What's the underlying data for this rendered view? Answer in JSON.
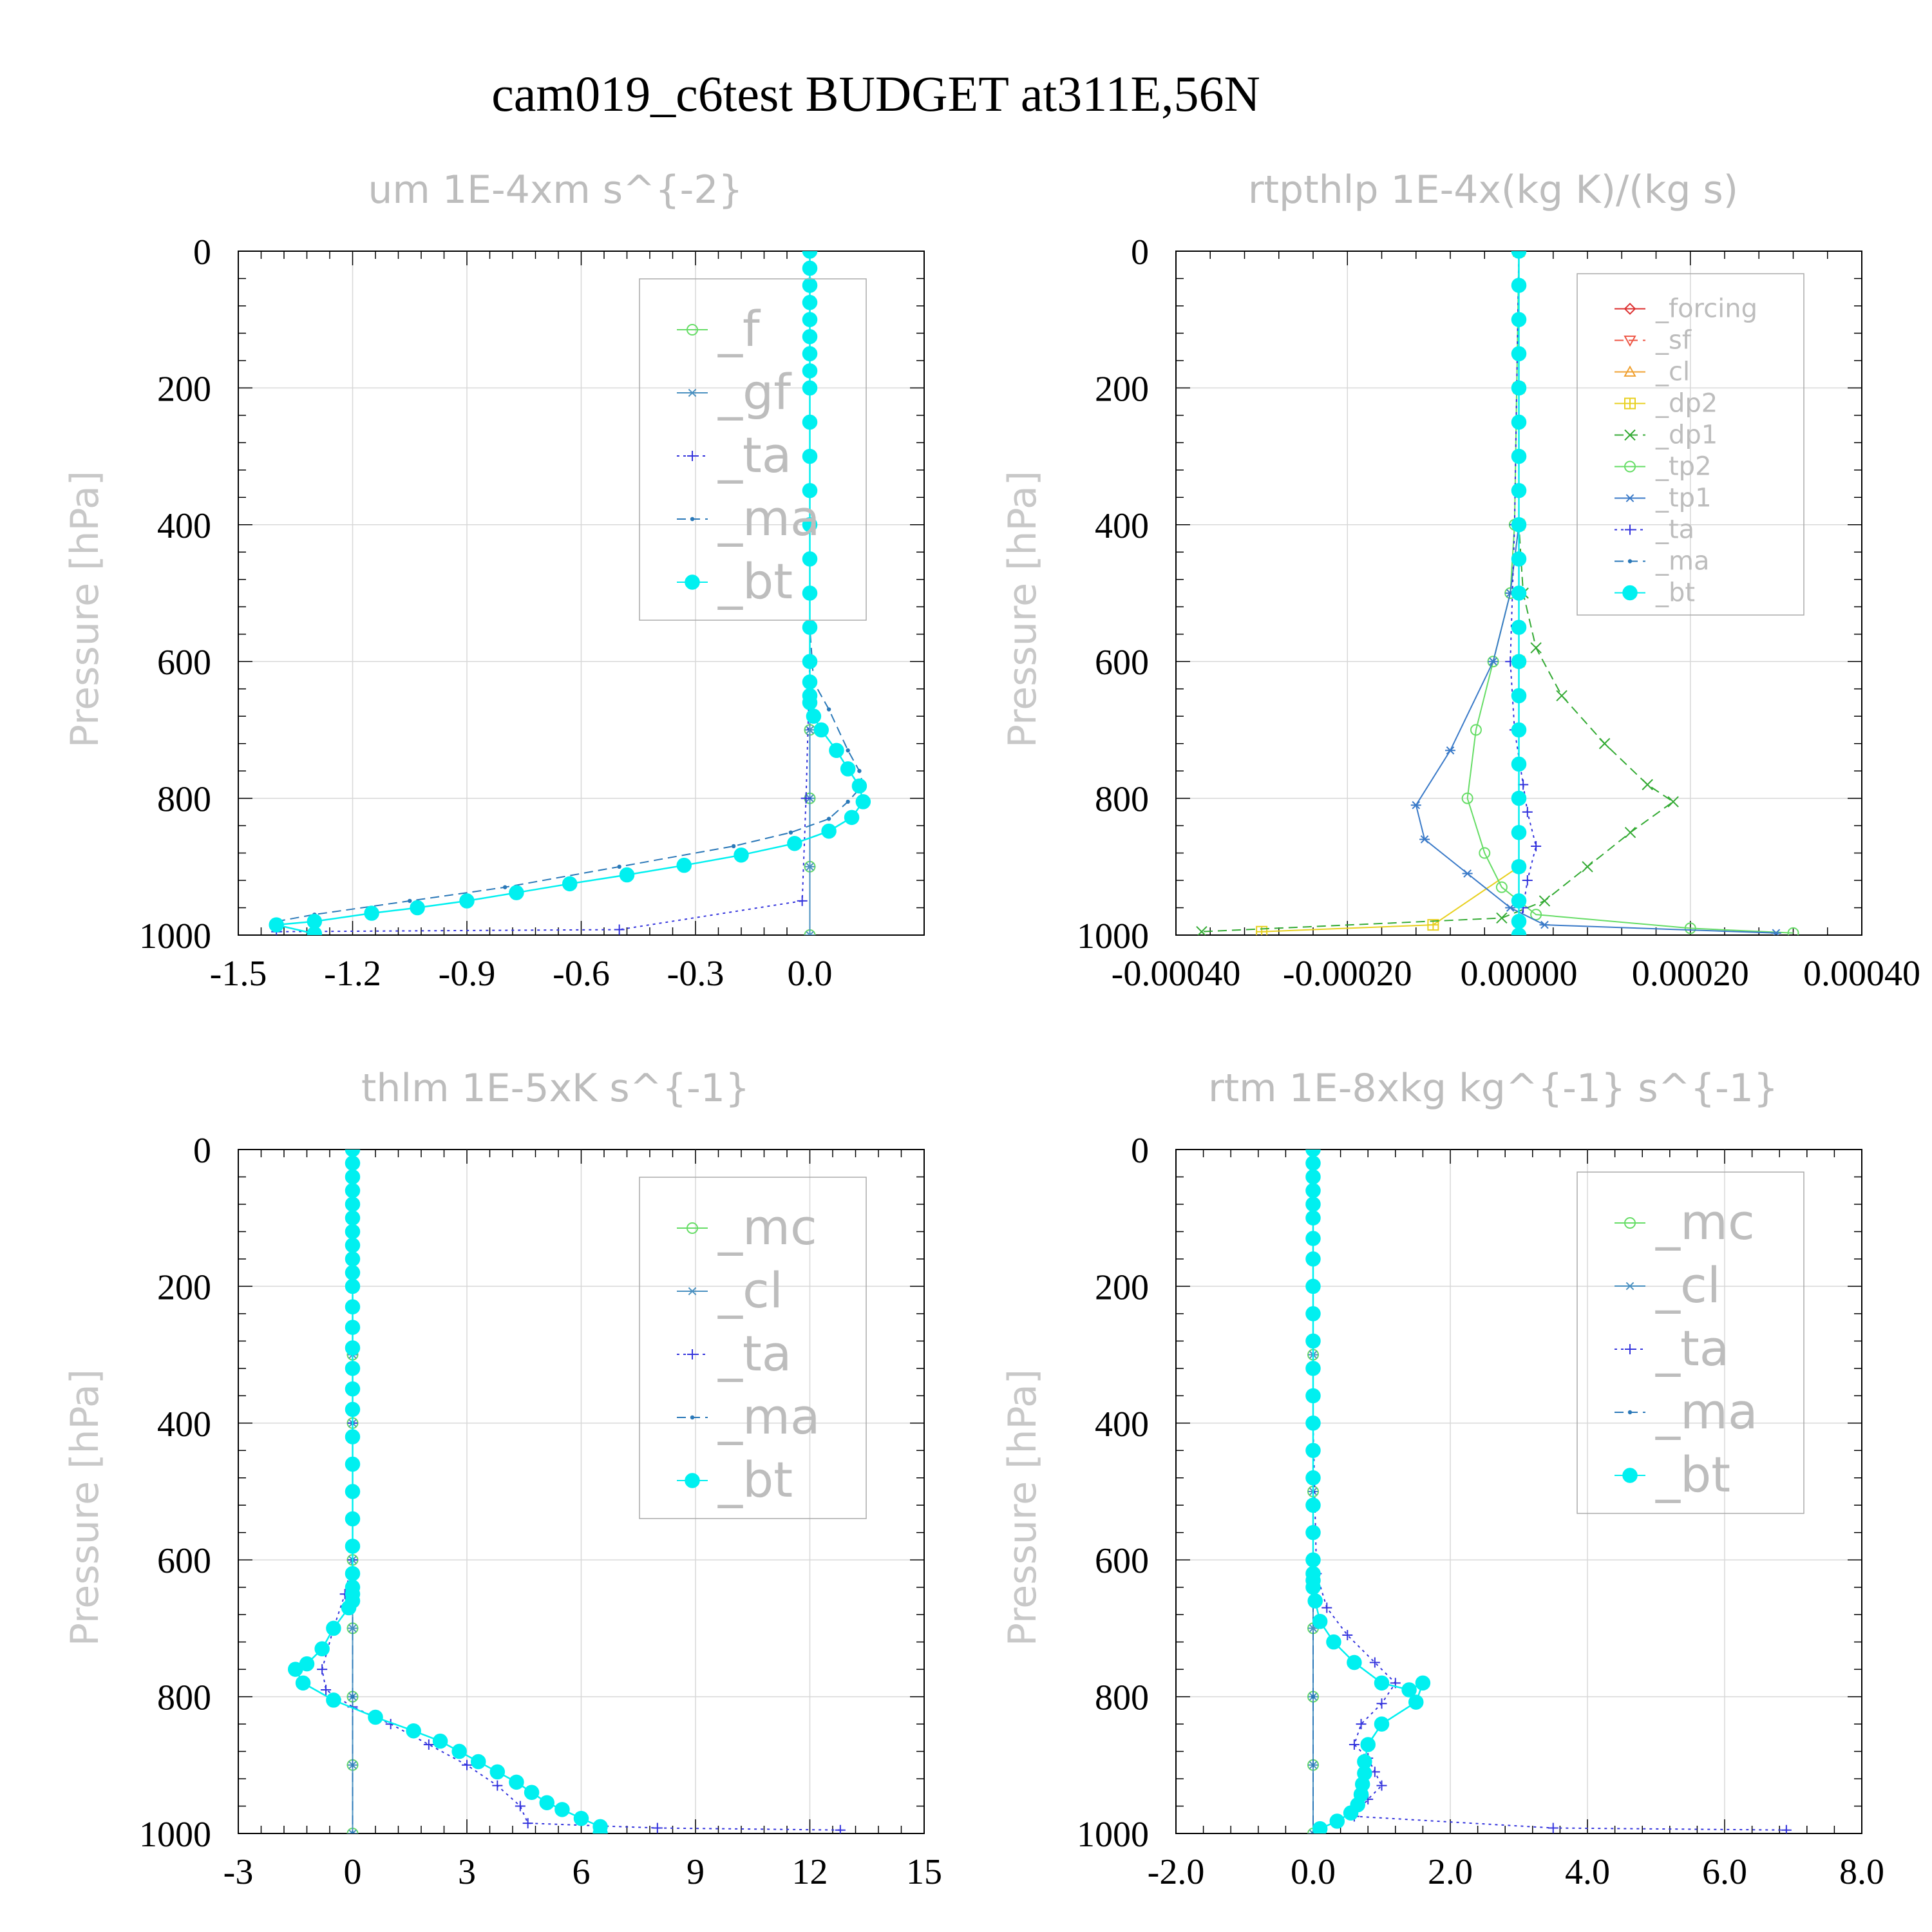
{
  "page": {
    "title": "cam019_c6test  BUDGET at311E,56N"
  },
  "chart_data": [
    {
      "type": "line",
      "title": "um  1E-4xm s^{-2}",
      "ylabel": "Pressure [hPa]",
      "xlabel": "",
      "xlim": [
        -1.5,
        0.3
      ],
      "ylim": [
        1000,
        0
      ],
      "y_inverted": true,
      "xticks": [
        "-1.5",
        "-1.2",
        "-0.9",
        "-0.6",
        "-0.3",
        "0.0"
      ],
      "xtick_values": [
        -1.5,
        -1.2,
        -0.9,
        -0.6,
        -0.3,
        0.0
      ],
      "yticks": [
        "0",
        "200",
        "400",
        "600",
        "800",
        "1000"
      ],
      "ytick_values": [
        0,
        200,
        400,
        600,
        800,
        1000
      ],
      "legend_position": "top-right",
      "series": [
        {
          "name": "_f",
          "color": "#66dd66",
          "marker": "circle",
          "dash": "solid",
          "x": [
            0,
            0,
            0,
            0,
            0,
            0,
            0,
            0,
            0,
            0,
            0
          ],
          "y": [
            0,
            100,
            200,
            300,
            400,
            500,
            600,
            700,
            800,
            900,
            1000
          ]
        },
        {
          "name": "_gf",
          "color": "#4a90c0",
          "marker": "asterisk",
          "dash": "solid",
          "x": [
            0,
            0,
            0,
            0,
            0,
            0,
            0,
            0,
            0,
            0,
            0
          ],
          "y": [
            0,
            100,
            200,
            300,
            400,
            500,
            600,
            700,
            800,
            900,
            1000
          ]
        },
        {
          "name": "_ta",
          "color": "#3333dd",
          "marker": "plus",
          "dash": "dotted",
          "x": [
            0,
            0,
            0,
            0,
            -0.01,
            -0.02,
            -0.5,
            -1.4
          ],
          "y": [
            0,
            200,
            400,
            600,
            800,
            950,
            992,
            995
          ]
        },
        {
          "name": "_ma",
          "color": "#2a78b8",
          "marker": "dot",
          "dash": "dashed",
          "x": [
            0,
            0,
            0,
            0,
            0.01,
            0.05,
            0.1,
            0.13,
            0.14,
            0.1,
            0.05,
            -0.05,
            -0.2,
            -0.5,
            -0.8,
            -1.05,
            -1.3,
            -1.4
          ],
          "y": [
            0,
            200,
            400,
            550,
            630,
            670,
            730,
            760,
            780,
            805,
            830,
            850,
            870,
            900,
            930,
            950,
            970,
            980
          ]
        },
        {
          "name": "_bt",
          "color": "#00f0f0",
          "marker": "filled-circle",
          "dash": "solid",
          "x": [
            0,
            0,
            0,
            0,
            0,
            0,
            0,
            0,
            0,
            0,
            0,
            0,
            0,
            0,
            0,
            0,
            0,
            0,
            0,
            0,
            0.01,
            0.03,
            0.07,
            0.1,
            0.13,
            0.14,
            0.11,
            0.05,
            -0.04,
            -0.18,
            -0.33,
            -0.48,
            -0.63,
            -0.77,
            -0.9,
            -1.03,
            -1.15,
            -1.3,
            -1.4,
            -1.3
          ],
          "y": [
            0,
            25,
            50,
            75,
            100,
            125,
            150,
            175,
            200,
            250,
            300,
            350,
            400,
            450,
            500,
            550,
            600,
            630,
            650,
            660,
            680,
            700,
            730,
            757,
            782,
            805,
            828,
            848,
            866,
            883,
            898,
            912,
            925,
            938,
            950,
            960,
            968,
            980,
            985,
            998
          ]
        }
      ]
    },
    {
      "type": "line",
      "title": "rtpthlp  1E-4x(kg K)/(kg s)",
      "ylabel": "Pressure [hPa]",
      "xlabel": "",
      "xlim": [
        -0.0004,
        0.0004
      ],
      "ylim": [
        1000,
        0
      ],
      "y_inverted": true,
      "xticks": [
        "-0.00040",
        "-0.00020",
        "0.00000",
        "0.00020",
        "0.00040"
      ],
      "xtick_values": [
        -0.0004,
        -0.0002,
        0,
        0.0002,
        0.0004
      ],
      "yticks": [
        "0",
        "200",
        "400",
        "600",
        "800",
        "1000"
      ],
      "ytick_values": [
        0,
        200,
        400,
        600,
        800,
        1000
      ],
      "legend_position": "top-right",
      "series": [
        {
          "name": "_forcing",
          "color": "#dd3333",
          "marker": "diamond",
          "dash": "solid",
          "x": [
            0,
            0,
            0,
            0,
            0,
            0
          ],
          "y": [
            0,
            200,
            400,
            600,
            800,
            1000
          ]
        },
        {
          "name": "_sf",
          "color": "#ee5544",
          "marker": "triangle-down",
          "dash": "dashed",
          "x": [
            0,
            0,
            0,
            0,
            0,
            0
          ],
          "y": [
            0,
            200,
            400,
            600,
            800,
            1000
          ]
        },
        {
          "name": "_cl",
          "color": "#f0a030",
          "marker": "triangle-up",
          "dash": "solid",
          "x": [
            0,
            0,
            0,
            0,
            0,
            0
          ],
          "y": [
            0,
            200,
            400,
            600,
            800,
            1000
          ]
        },
        {
          "name": "_dp2",
          "color": "#e8d020",
          "marker": "square-plus",
          "dash": "solid",
          "x": [
            0,
            0,
            0,
            0,
            0,
            -0.0001,
            -0.0003
          ],
          "y": [
            0,
            200,
            400,
            600,
            900,
            985,
            995
          ]
        },
        {
          "name": "_dp1",
          "color": "#33aa33",
          "marker": "x",
          "dash": "dashed",
          "x": [
            0,
            0,
            5e-06,
            2e-05,
            5e-05,
            0.0001,
            0.00015,
            0.00018,
            0.00013,
            8e-05,
            3e-05,
            -2e-05,
            -0.00037
          ],
          "y": [
            0,
            400,
            500,
            580,
            650,
            720,
            780,
            805,
            850,
            900,
            950,
            975,
            995
          ]
        },
        {
          "name": "_tp2",
          "color": "#66dd66",
          "marker": "circle",
          "dash": "solid",
          "x": [
            0,
            -5e-06,
            -1e-05,
            -3e-05,
            -5e-05,
            -6e-05,
            -4e-05,
            -2e-05,
            2e-05,
            0.0002,
            0.00032
          ],
          "y": [
            0,
            400,
            500,
            600,
            700,
            800,
            880,
            930,
            970,
            990,
            997
          ]
        },
        {
          "name": "_tp1",
          "color": "#3a7ac8",
          "marker": "asterisk",
          "dash": "solid",
          "x": [
            0,
            0,
            -1e-05,
            -3e-05,
            -8e-05,
            -0.00012,
            -0.00011,
            -6e-05,
            -1e-05,
            3e-05,
            0.0003
          ],
          "y": [
            0,
            400,
            500,
            600,
            730,
            810,
            860,
            910,
            960,
            985,
            997
          ]
        },
        {
          "name": "_ta",
          "color": "#3333dd",
          "marker": "plus",
          "dash": "dotted",
          "x": [
            0,
            -5e-06,
            -1e-05,
            -5e-06,
            5e-06,
            1e-05,
            2e-05,
            1e-05,
            5e-06,
            0
          ],
          "y": [
            0,
            400,
            600,
            700,
            780,
            820,
            870,
            920,
            960,
            1000
          ]
        },
        {
          "name": "_ma",
          "color": "#2a78b8",
          "marker": "dot",
          "dash": "dashed",
          "x": [
            0,
            0,
            0,
            0,
            0,
            0
          ],
          "y": [
            0,
            200,
            400,
            600,
            800,
            1000
          ]
        },
        {
          "name": "_bt",
          "color": "#00f0f0",
          "marker": "filled-circle",
          "dash": "solid",
          "x": [
            0,
            0,
            0,
            0,
            0,
            0,
            0,
            0,
            0,
            0,
            0,
            0,
            0,
            0,
            0,
            0,
            0,
            0,
            0,
            0,
            0,
            0
          ],
          "y": [
            0,
            50,
            100,
            150,
            200,
            250,
            300,
            350,
            400,
            450,
            500,
            550,
            600,
            650,
            700,
            750,
            800,
            850,
            900,
            950,
            980,
            1000
          ]
        }
      ]
    },
    {
      "type": "line",
      "title": "thlm  1E-5xK s^{-1}",
      "ylabel": "Pressure [hPa]",
      "xlabel": "",
      "xlim": [
        -3,
        15
      ],
      "ylim": [
        1000,
        0
      ],
      "y_inverted": true,
      "xticks": [
        "-3",
        "0",
        "3",
        "6",
        "9",
        "12",
        "15"
      ],
      "xtick_values": [
        -3,
        0,
        3,
        6,
        9,
        12,
        15
      ],
      "yticks": [
        "0",
        "200",
        "400",
        "600",
        "800",
        "1000"
      ],
      "ytick_values": [
        0,
        200,
        400,
        600,
        800,
        1000
      ],
      "legend_position": "top-right",
      "series": [
        {
          "name": "_mc",
          "color": "#66dd66",
          "marker": "circle",
          "dash": "solid",
          "x": [
            0,
            0,
            0,
            0,
            0,
            0,
            0,
            0,
            0,
            0,
            0
          ],
          "y": [
            0,
            100,
            200,
            300,
            400,
            500,
            600,
            700,
            800,
            900,
            1000
          ]
        },
        {
          "name": "_cl",
          "color": "#4a90c0",
          "marker": "asterisk",
          "dash": "solid",
          "x": [
            0,
            0,
            0,
            0,
            0,
            0,
            0,
            0,
            0,
            0,
            0
          ],
          "y": [
            0,
            100,
            200,
            300,
            400,
            500,
            600,
            700,
            800,
            900,
            1000
          ]
        },
        {
          "name": "_ta",
          "color": "#3333dd",
          "marker": "plus",
          "dash": "dotted",
          "x": [
            0,
            0,
            0,
            -0.2,
            -0.5,
            -0.8,
            -0.7,
            0,
            1,
            2,
            3,
            3.8,
            4.4,
            4.6,
            8,
            12.8
          ],
          "y": [
            0,
            400,
            600,
            650,
            700,
            760,
            790,
            815,
            840,
            870,
            900,
            930,
            960,
            985,
            992,
            995
          ]
        },
        {
          "name": "_ma",
          "color": "#2a78b8",
          "marker": "dot",
          "dash": "dashed",
          "x": [
            0,
            0,
            0,
            0,
            0,
            0
          ],
          "y": [
            0,
            200,
            400,
            600,
            800,
            1000
          ]
        },
        {
          "name": "_bt",
          "color": "#00f0f0",
          "marker": "filled-circle",
          "dash": "solid",
          "x": [
            0,
            0,
            0,
            0,
            0,
            0,
            0,
            0,
            0,
            0,
            0,
            0,
            0,
            0,
            0,
            0,
            0,
            0,
            0,
            0,
            0,
            0,
            0,
            0,
            0,
            0,
            -0.1,
            -0.5,
            -0.8,
            -1.2,
            -1.5,
            -1.3,
            -0.5,
            0.6,
            1.6,
            2.3,
            2.8,
            3.3,
            3.8,
            4.3,
            4.7,
            5.1,
            5.5,
            6,
            6.5,
            6.5
          ],
          "y": [
            0,
            20,
            40,
            60,
            80,
            100,
            120,
            140,
            160,
            180,
            200,
            230,
            260,
            290,
            320,
            350,
            380,
            420,
            460,
            500,
            540,
            580,
            620,
            640,
            650,
            660,
            670,
            700,
            730,
            752,
            760,
            780,
            805,
            830,
            850,
            865,
            880,
            895,
            910,
            925,
            940,
            955,
            965,
            978,
            990,
            1000
          ]
        }
      ]
    },
    {
      "type": "line",
      "title": "rtm  1E-8xkg kg^{-1} s^{-1}",
      "ylabel": "Pressure [hPa]",
      "xlabel": "",
      "xlim": [
        -2.0,
        8.0
      ],
      "ylim": [
        1000,
        0
      ],
      "y_inverted": true,
      "xticks": [
        "-2.0",
        "0.0",
        "2.0",
        "4.0",
        "6.0",
        "8.0"
      ],
      "xtick_values": [
        -2,
        0,
        2,
        4,
        6,
        8
      ],
      "yticks": [
        "0",
        "200",
        "400",
        "600",
        "800",
        "1000"
      ],
      "ytick_values": [
        0,
        200,
        400,
        600,
        800,
        1000
      ],
      "legend_position": "top-right",
      "series": [
        {
          "name": "_mc",
          "color": "#66dd66",
          "marker": "circle",
          "dash": "solid",
          "x": [
            0,
            0,
            0,
            0,
            0,
            0,
            0,
            0,
            0,
            0,
            0
          ],
          "y": [
            0,
            100,
            200,
            300,
            400,
            500,
            600,
            700,
            800,
            900,
            1000
          ]
        },
        {
          "name": "_cl",
          "color": "#4a90c0",
          "marker": "asterisk",
          "dash": "solid",
          "x": [
            0,
            0,
            0,
            0,
            0,
            0,
            0,
            0,
            0,
            0,
            0
          ],
          "y": [
            0,
            100,
            200,
            300,
            400,
            500,
            600,
            700,
            800,
            900,
            1000
          ]
        },
        {
          "name": "_ta",
          "color": "#3333dd",
          "marker": "plus",
          "dash": "dotted",
          "x": [
            0,
            0,
            0.05,
            0.2,
            0.5,
            0.9,
            1.2,
            1.0,
            0.7,
            0.6,
            0.8,
            0.9,
            1.0,
            0.8,
            0.6,
            3.5,
            6.9
          ],
          "y": [
            0,
            400,
            620,
            670,
            710,
            750,
            780,
            810,
            840,
            870,
            890,
            910,
            930,
            950,
            975,
            992,
            995
          ]
        },
        {
          "name": "_ma",
          "color": "#2a78b8",
          "marker": "dot",
          "dash": "dashed",
          "x": [
            0,
            0,
            0,
            0,
            0,
            0
          ],
          "y": [
            0,
            200,
            400,
            600,
            800,
            1000
          ]
        },
        {
          "name": "_bt",
          "color": "#00f0f0",
          "marker": "filled-circle",
          "dash": "solid",
          "x": [
            0,
            0,
            0,
            0,
            0,
            0,
            0,
            0,
            0,
            0,
            0,
            0,
            0,
            0,
            0,
            0,
            0,
            0,
            0,
            0,
            0,
            0,
            0.03,
            0.1,
            0.3,
            0.6,
            1.0,
            1.4,
            1.6,
            1.5,
            1.0,
            0.8,
            0.75,
            0.75,
            0.72,
            0.7,
            0.65,
            0.55,
            0.35,
            0.1
          ],
          "y": [
            0,
            20,
            40,
            60,
            80,
            100,
            130,
            160,
            200,
            240,
            280,
            320,
            360,
            400,
            440,
            480,
            520,
            560,
            600,
            620,
            630,
            640,
            660,
            690,
            720,
            750,
            780,
            790,
            780,
            808,
            840,
            870,
            895,
            912,
            928,
            943,
            958,
            970,
            982,
            993
          ]
        }
      ]
    }
  ]
}
